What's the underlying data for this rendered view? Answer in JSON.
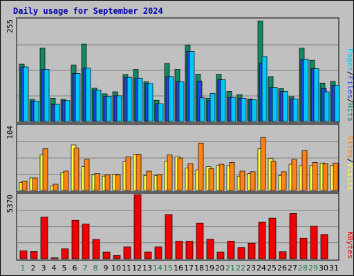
{
  "chart_data": {
    "type": "bar",
    "title": "Daily usage for September 2024",
    "days": [
      "1",
      "2",
      "3",
      "4",
      "5",
      "6",
      "7",
      "8",
      "9",
      "10",
      "11",
      "12",
      "13",
      "14",
      "15",
      "16",
      "17",
      "18",
      "19",
      "20",
      "21",
      "22",
      "23",
      "24",
      "25",
      "26",
      "27",
      "28",
      "29",
      "30",
      "31"
    ],
    "weekend_days": [
      1,
      7,
      8,
      14,
      15,
      21,
      22,
      28,
      29
    ],
    "panels": [
      {
        "id": "hits-files-pages",
        "ymax_label": "255",
        "ymax": 255,
        "grid": true,
        "legend": [
          "Pages",
          "Files",
          "Hits"
        ],
        "series": [
          {
            "name": "Hits",
            "color": "#148863",
            "values": [
              143,
              55,
              183,
              58,
              55,
              141,
              193,
              83,
              69,
              74,
              117,
              130,
              99,
              53,
              145,
              130,
              191,
              118,
              58,
              118,
              75,
              67,
              56,
              251,
              112,
              82,
              62,
              183,
              153,
              96,
              100
            ]
          },
          {
            "name": "Files",
            "color": "#1e47dc",
            "values": [
              136,
              51,
              130,
              43,
              52,
              120,
              133,
              78,
              63,
              64,
              110,
              108,
              95,
              44,
              112,
              99,
              175,
              101,
              52,
              104,
              60,
              58,
              54,
              145,
              85,
              75,
              56,
              155,
              132,
              82,
              90
            ]
          },
          {
            "name": "Pages",
            "color": "#00c8f8",
            "values": [
              136,
              51,
              130,
              43,
              52,
              120,
              133,
              78,
              63,
              64,
              110,
              108,
              95,
              44,
              112,
              99,
              175,
              59,
              70,
              104,
              60,
              58,
              54,
              162,
              85,
              75,
              56,
              155,
              132,
              74,
              90
            ]
          }
        ]
      },
      {
        "id": "visits-sites",
        "ymax_label": "104",
        "ymax": 104,
        "grid": true,
        "legend": [
          "Sites",
          "Visits"
        ],
        "series": [
          {
            "name": "Visits",
            "color": "#ffff3c",
            "values": [
              13,
              20,
              57,
              7,
              28,
              73,
              38,
              25,
              23,
              26,
              46,
              58,
              24,
              24,
              47,
              54,
              36,
              33,
              38,
              40,
              40,
              23,
              27,
              67,
              51,
              24,
              42,
              40,
              40,
              44,
              40
            ]
          },
          {
            "name": "Sites",
            "color": "#ff8214",
            "values": [
              15,
              20,
              67,
              10,
              31,
              68,
              50,
              27,
              25,
              25,
              54,
              58,
              31,
              25,
              57,
              52,
              43,
              76,
              35,
              42,
              45,
              31,
              30,
              85,
              47,
              30,
              50,
              64,
              45,
              43,
              44
            ]
          }
        ]
      },
      {
        "id": "kbytes",
        "ymax_label": "5370",
        "ymax": 5370,
        "grid": true,
        "legend": [
          "KBytes"
        ],
        "series": [
          {
            "name": "KBytes",
            "color": "#f00000",
            "values": [
              660,
              600,
              3490,
              80,
              830,
              3220,
              2900,
              1620,
              570,
              270,
              990,
              5370,
              570,
              990,
              3700,
              1470,
              1470,
              2990,
              1640,
              570,
              1480,
              940,
              1310,
              3060,
              3400,
              590,
              3790,
              1720,
              2720,
              2030,
              0
            ]
          }
        ]
      }
    ],
    "colors": {
      "title": "#0000aa",
      "weekday_label": "#000000",
      "weekend_label": "#1f7a45",
      "plot_bg": "#c0c0c0",
      "grid": "#808080",
      "legend_separator": "#000000"
    }
  }
}
